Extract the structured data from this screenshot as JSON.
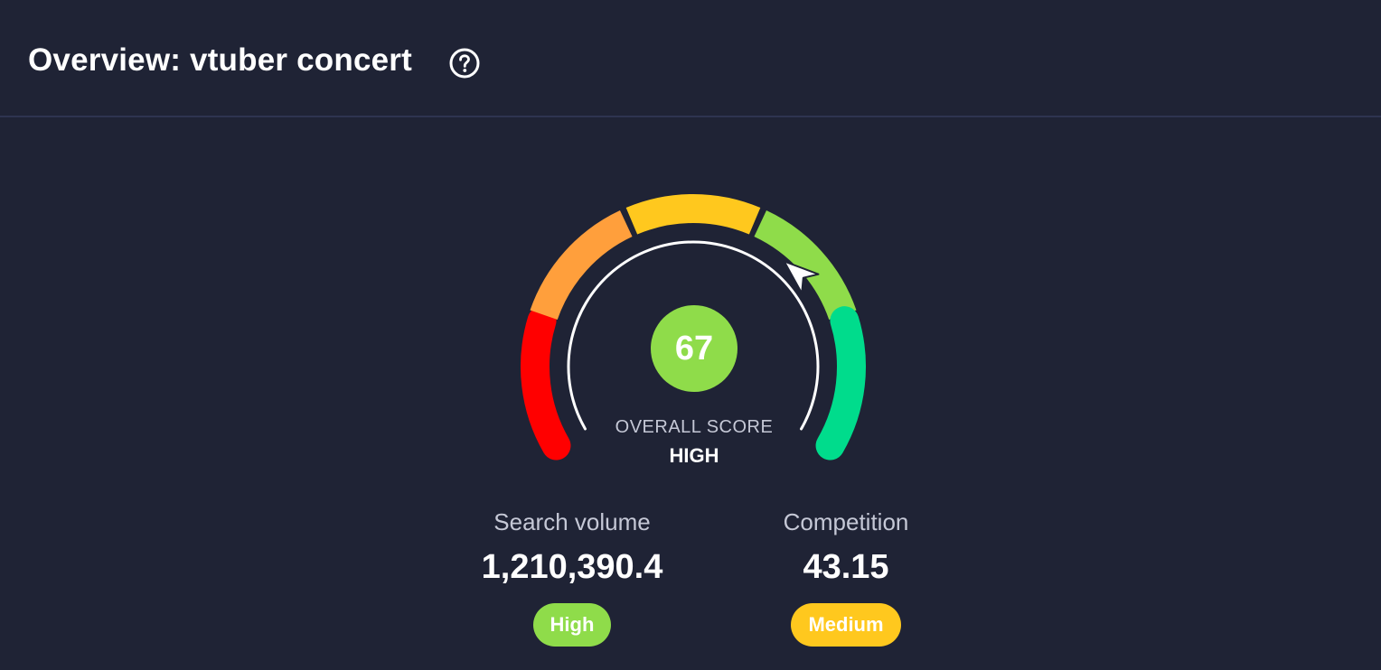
{
  "header": {
    "title": "Overview: vtuber concert",
    "help_icon": "question-circle-icon"
  },
  "gauge": {
    "score": "67",
    "score_fraction": 0.67,
    "label": "OVERALL SCORE",
    "rating": "HIGH",
    "segment_colors": [
      "#ff0000",
      "#ff9f3c",
      "#ffc81e",
      "#8fdc4a",
      "#00dc8c"
    ],
    "score_color": "#8fdc4a",
    "pointer_icon": "pointer-arrow-icon"
  },
  "metrics": {
    "search_volume": {
      "label": "Search volume",
      "value": "1,210,390.4",
      "badge": "High",
      "badge_color": "#8fdc4a"
    },
    "competition": {
      "label": "Competition",
      "value": "43.15",
      "badge": "Medium",
      "badge_color": "#ffc81e"
    }
  }
}
